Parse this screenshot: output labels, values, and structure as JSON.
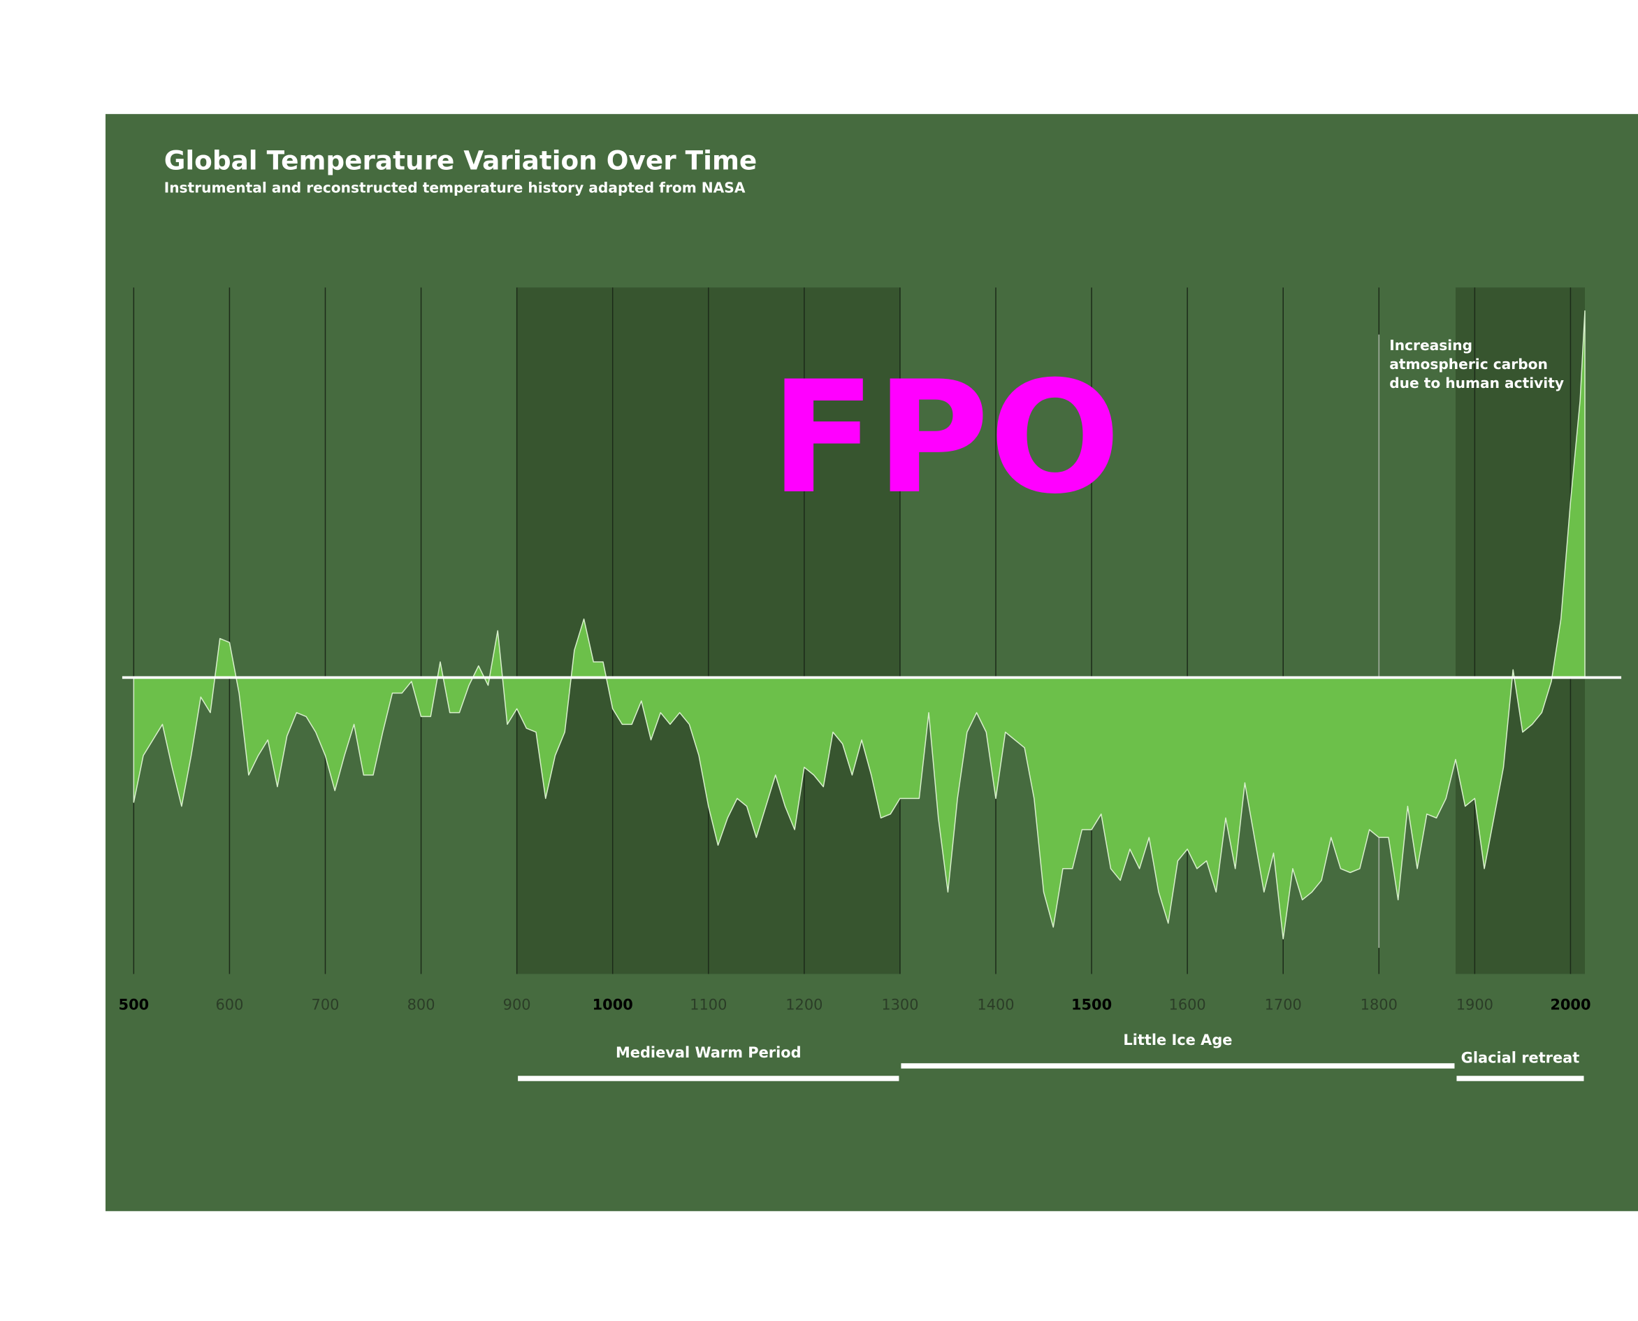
{
  "chart_data": {
    "type": "area",
    "title": "Global Temperature Variation Over Time",
    "subtitle": "Instrumental and reconstructed temperature history adapted from NASA",
    "placeholder": "FPO",
    "annotation": {
      "x": 1800,
      "lines": [
        "Increasing",
        "atmospheric carbon",
        "due to human activity"
      ]
    },
    "periods": [
      {
        "name": "Medieval Warm Period",
        "start": 900,
        "end": 1300
      },
      {
        "name": "Little Ice Age",
        "start": 1300,
        "end": 1880
      },
      {
        "name": "Glacial retreat",
        "start": 1880,
        "end": 2015
      }
    ],
    "x": [
      500,
      510,
      520,
      530,
      540,
      550,
      560,
      570,
      580,
      590,
      600,
      610,
      620,
      630,
      640,
      650,
      660,
      670,
      680,
      690,
      700,
      710,
      720,
      730,
      740,
      750,
      760,
      770,
      780,
      790,
      800,
      810,
      820,
      830,
      840,
      850,
      860,
      870,
      880,
      890,
      900,
      910,
      920,
      930,
      940,
      950,
      960,
      970,
      980,
      990,
      1000,
      1010,
      1020,
      1030,
      1040,
      1050,
      1060,
      1070,
      1080,
      1090,
      1100,
      1110,
      1120,
      1130,
      1140,
      1150,
      1160,
      1170,
      1180,
      1190,
      1200,
      1210,
      1220,
      1230,
      1240,
      1250,
      1260,
      1270,
      1280,
      1290,
      1300,
      1310,
      1320,
      1330,
      1340,
      1350,
      1360,
      1370,
      1380,
      1390,
      1400,
      1410,
      1420,
      1430,
      1440,
      1450,
      1460,
      1470,
      1480,
      1490,
      1500,
      1510,
      1520,
      1530,
      1540,
      1550,
      1560,
      1570,
      1580,
      1590,
      1600,
      1610,
      1620,
      1630,
      1640,
      1650,
      1660,
      1670,
      1680,
      1690,
      1700,
      1710,
      1720,
      1730,
      1740,
      1750,
      1760,
      1770,
      1780,
      1790,
      1800,
      1810,
      1820,
      1830,
      1840,
      1850,
      1860,
      1870,
      1880,
      1890,
      1900,
      1910,
      1920,
      1930,
      1940,
      1950,
      1960,
      1970,
      1980,
      1990,
      2000,
      2010,
      2015
    ],
    "values": [
      -0.32,
      -0.2,
      -0.16,
      -0.12,
      -0.23,
      -0.33,
      -0.2,
      -0.05,
      -0.09,
      0.1,
      0.09,
      -0.04,
      -0.25,
      -0.2,
      -0.16,
      -0.28,
      -0.15,
      -0.09,
      -0.1,
      -0.14,
      -0.2,
      -0.29,
      -0.2,
      -0.12,
      -0.25,
      -0.25,
      -0.14,
      -0.04,
      -0.04,
      -0.01,
      -0.1,
      -0.1,
      0.04,
      -0.09,
      -0.09,
      -0.02,
      0.03,
      -0.02,
      0.12,
      -0.12,
      -0.08,
      -0.13,
      -0.14,
      -0.31,
      -0.2,
      -0.14,
      0.07,
      0.15,
      0.04,
      0.04,
      -0.08,
      -0.12,
      -0.12,
      -0.06,
      -0.16,
      -0.09,
      -0.12,
      -0.09,
      -0.12,
      -0.2,
      -0.33,
      -0.43,
      -0.36,
      -0.31,
      -0.33,
      -0.41,
      -0.33,
      -0.25,
      -0.33,
      -0.39,
      -0.23,
      -0.25,
      -0.28,
      -0.14,
      -0.17,
      -0.25,
      -0.16,
      -0.25,
      -0.36,
      -0.35,
      -0.31,
      -0.31,
      -0.31,
      -0.09,
      -0.36,
      -0.55,
      -0.31,
      -0.14,
      -0.09,
      -0.14,
      -0.31,
      -0.14,
      -0.16,
      -0.18,
      -0.31,
      -0.55,
      -0.64,
      -0.49,
      -0.49,
      -0.39,
      -0.39,
      -0.35,
      -0.49,
      -0.52,
      -0.44,
      -0.49,
      -0.41,
      -0.55,
      -0.63,
      -0.47,
      -0.44,
      -0.49,
      -0.47,
      -0.55,
      -0.36,
      -0.49,
      -0.27,
      -0.41,
      -0.55,
      -0.45,
      -0.67,
      -0.49,
      -0.57,
      -0.55,
      -0.52,
      -0.41,
      -0.49,
      -0.5,
      -0.49,
      -0.39,
      -0.41,
      -0.41,
      -0.57,
      -0.33,
      -0.49,
      -0.35,
      -0.36,
      -0.31,
      -0.21,
      -0.33,
      -0.31,
      -0.49,
      -0.36,
      -0.23,
      0.02,
      -0.14,
      -0.12,
      -0.09,
      -0.01,
      0.15,
      0.45,
      0.71,
      0.94
    ],
    "color": "#6cc04a",
    "xlim": [
      488,
      2053
    ],
    "ylim": [
      -0.76,
      1
    ],
    "xticks": [
      500,
      600,
      700,
      800,
      900,
      1000,
      1100,
      1200,
      1300,
      1400,
      1500,
      1600,
      1700,
      1800,
      1900,
      2000
    ],
    "major_tick_step": 500,
    "grid": true
  }
}
